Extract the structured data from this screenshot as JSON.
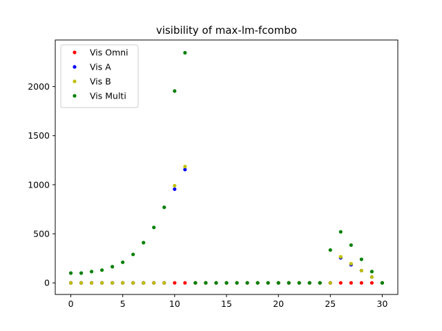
{
  "chart_data": {
    "type": "scatter",
    "title": "visibility of max-lm-fcombo",
    "xlabel": "",
    "ylabel": "",
    "xlim": [
      -1.5,
      31.5
    ],
    "ylim": [
      -118,
      2475
    ],
    "xticks": [
      0,
      5,
      10,
      15,
      20,
      25,
      30
    ],
    "yticks": [
      0,
      500,
      1000,
      1500,
      2000
    ],
    "grid": false,
    "legend_position": "top-left",
    "x": [
      0,
      1,
      2,
      3,
      4,
      5,
      6,
      7,
      8,
      9,
      10,
      11,
      12,
      13,
      14,
      15,
      16,
      17,
      18,
      19,
      20,
      21,
      22,
      23,
      24,
      25,
      26,
      27,
      28,
      29,
      30
    ],
    "series": [
      {
        "name": "Vis Omni",
        "color": "#ff0000",
        "values": [
          0,
          0,
          0,
          0,
          0,
          0,
          0,
          0,
          0,
          0,
          0,
          0,
          0,
          0,
          0,
          0,
          0,
          0,
          0,
          0,
          0,
          0,
          0,
          0,
          0,
          0,
          0,
          0,
          0,
          0,
          0
        ]
      },
      {
        "name": "Vis A",
        "color": "#0000ff",
        "values": [
          0,
          0,
          0,
          0,
          0,
          0,
          0,
          0,
          0,
          0,
          955,
          1155,
          0,
          0,
          0,
          0,
          0,
          0,
          0,
          0,
          0,
          0,
          0,
          0,
          0,
          0,
          255,
          185,
          125,
          60,
          0
        ]
      },
      {
        "name": "Vis B",
        "color": "#bfbf00",
        "values": [
          0,
          0,
          0,
          0,
          0,
          0,
          0,
          0,
          0,
          0,
          990,
          1185,
          0,
          0,
          0,
          0,
          0,
          0,
          0,
          0,
          0,
          0,
          0,
          0,
          0,
          0,
          265,
          195,
          125,
          60,
          0
        ]
      },
      {
        "name": "Vis Multi",
        "color": "#008000",
        "values": [
          100,
          100,
          115,
          130,
          165,
          210,
          290,
          410,
          565,
          770,
          1955,
          2345,
          0,
          0,
          0,
          0,
          0,
          0,
          0,
          0,
          0,
          0,
          0,
          0,
          0,
          335,
          520,
          385,
          240,
          115,
          0
        ]
      }
    ]
  }
}
